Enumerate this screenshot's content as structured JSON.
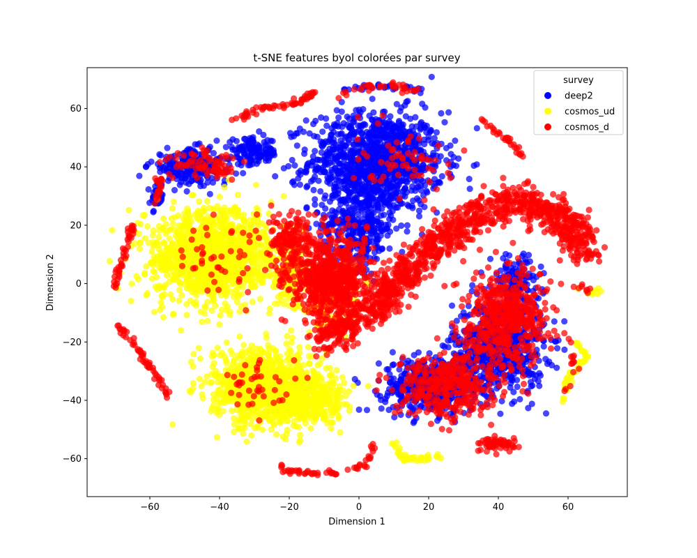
{
  "chart_data": {
    "type": "scatter",
    "title": "t-SNE features byol colorées par survey",
    "xlabel": "Dimension 1",
    "ylabel": "Dimension 2",
    "xlim": [
      -78,
      77
    ],
    "ylim": [
      -73,
      74
    ],
    "xticks": [
      -60,
      -40,
      -20,
      0,
      20,
      40,
      60
    ],
    "yticks": [
      -60,
      -40,
      -20,
      0,
      20,
      40,
      60
    ],
    "grid": false,
    "legend": {
      "title": "survey",
      "placement": "top-right"
    },
    "draw_order": [
      "deep2",
      "cosmos_ud",
      "cosmos_d"
    ],
    "series": [
      {
        "name": "deep2",
        "color": "#0000ff",
        "regions": [
          {
            "kind": "blob",
            "center": [
              5,
              42
            ],
            "spread": [
              16,
              14
            ],
            "count": 1100
          },
          {
            "kind": "blob",
            "center": [
              0,
              20
            ],
            "spread": [
              9,
              12
            ],
            "count": 350
          },
          {
            "kind": "blob",
            "center": [
              40,
              -22
            ],
            "spread": [
              11,
              13
            ],
            "count": 600
          },
          {
            "kind": "blob",
            "center": [
              20,
              -35
            ],
            "spread": [
              11,
              8
            ],
            "count": 450
          },
          {
            "kind": "blob",
            "center": [
              45,
              0
            ],
            "spread": [
              6,
              8
            ],
            "count": 160
          },
          {
            "kind": "blob",
            "center": [
              -48,
              40
            ],
            "spread": [
              10,
              5
            ],
            "count": 220
          },
          {
            "kind": "blob",
            "center": [
              -30,
              45
            ],
            "spread": [
              6,
              4
            ],
            "count": 120
          },
          {
            "kind": "blob",
            "center": [
              -58,
              30
            ],
            "spread": [
              1.5,
              4
            ],
            "count": 40
          },
          {
            "kind": "arc",
            "points": [
              [
                -5,
                66
              ],
              [
                5,
                68
              ],
              [
                15,
                67
              ],
              [
                19,
                65
              ]
            ],
            "count": 30
          }
        ]
      },
      {
        "name": "cosmos_ud",
        "color": "#ffff00",
        "regions": [
          {
            "kind": "blob",
            "center": [
              -42,
              10
            ],
            "spread": [
              14,
              13
            ],
            "count": 1300
          },
          {
            "kind": "blob",
            "center": [
              -28,
              -35
            ],
            "spread": [
              12,
              10
            ],
            "count": 900
          },
          {
            "kind": "blob",
            "center": [
              -15,
              -40
            ],
            "spread": [
              10,
              8
            ],
            "count": 400
          },
          {
            "kind": "blob",
            "center": [
              -20,
              5
            ],
            "spread": [
              5,
              12
            ],
            "count": 150
          },
          {
            "kind": "blob",
            "center": [
              -8,
              -5
            ],
            "spread": [
              7,
              10
            ],
            "count": 150
          },
          {
            "kind": "arc",
            "points": [
              [
                10,
                -55
              ],
              [
                13,
                -60
              ],
              [
                18,
                -60
              ],
              [
                23,
                -59
              ]
            ],
            "count": 40
          },
          {
            "kind": "arc",
            "points": [
              [
                62,
                -20
              ],
              [
                66,
                -25
              ],
              [
                60,
                -32
              ],
              [
                59,
                -40
              ]
            ],
            "count": 45
          },
          {
            "kind": "arc",
            "points": [
              [
                63,
                -2
              ],
              [
                66,
                -3
              ],
              [
                70,
                -2
              ]
            ],
            "count": 10
          }
        ]
      },
      {
        "name": "cosmos_d",
        "color": "#ff0000",
        "regions": [
          {
            "kind": "band",
            "points": [
              [
                -10,
                -20
              ],
              [
                5,
                -8
              ],
              [
                20,
                12
              ],
              [
                35,
                25
              ],
              [
                48,
                28
              ],
              [
                62,
                20
              ],
              [
                64,
                10
              ]
            ],
            "width": 4,
            "count": 1100
          },
          {
            "kind": "blob",
            "center": [
              -8,
              2
            ],
            "spread": [
              10,
              12
            ],
            "count": 700
          },
          {
            "kind": "blob",
            "center": [
              42,
              -12
            ],
            "spread": [
              10,
              14
            ],
            "count": 500
          },
          {
            "kind": "blob",
            "center": [
              25,
              -35
            ],
            "spread": [
              12,
              10
            ],
            "count": 350
          },
          {
            "kind": "blob",
            "center": [
              -20,
              15
            ],
            "spread": [
              5,
              8
            ],
            "count": 150
          },
          {
            "kind": "blob",
            "center": [
              -45,
              40
            ],
            "spread": [
              9,
              5
            ],
            "count": 80
          },
          {
            "kind": "blob",
            "center": [
              -40,
              10
            ],
            "spread": [
              12,
              12
            ],
            "count": 45
          },
          {
            "kind": "blob",
            "center": [
              -30,
              -35
            ],
            "spread": [
              10,
              8
            ],
            "count": 40
          },
          {
            "kind": "blob",
            "center": [
              40,
              -55
            ],
            "spread": [
              5,
              2
            ],
            "count": 60
          },
          {
            "kind": "blob",
            "center": [
              10,
              40
            ],
            "spread": [
              12,
              10
            ],
            "count": 60
          },
          {
            "kind": "arc",
            "points": [
              [
                -36,
                56
              ],
              [
                -28,
                60
              ],
              [
                -18,
                62
              ],
              [
                -12,
                66
              ]
            ],
            "count": 60
          },
          {
            "kind": "arc",
            "points": [
              [
                -71,
                -4
              ],
              [
                -68,
                8
              ],
              [
                -65,
                20
              ]
            ],
            "count": 45
          },
          {
            "kind": "arc",
            "points": [
              [
                -69,
                -14
              ],
              [
                -64,
                -22
              ],
              [
                -58,
                -32
              ],
              [
                -54,
                -39
              ]
            ],
            "count": 55
          },
          {
            "kind": "arc",
            "points": [
              [
                -24,
                -63
              ],
              [
                -18,
                -65
              ],
              [
                -10,
                -65
              ],
              [
                -6,
                -65
              ]
            ],
            "count": 35
          },
          {
            "kind": "arc",
            "points": [
              [
                -4,
                -64
              ],
              [
                2,
                -62
              ],
              [
                4,
                -55
              ]
            ],
            "count": 20
          },
          {
            "kind": "arc",
            "points": [
              [
                -7,
                64
              ],
              [
                0,
                67
              ],
              [
                10,
                68
              ],
              [
                19,
                65
              ]
            ],
            "count": 35
          },
          {
            "kind": "arc",
            "points": [
              [
                35,
                56
              ],
              [
                42,
                50
              ],
              [
                48,
                43
              ]
            ],
            "count": 30
          },
          {
            "kind": "arc",
            "points": [
              [
                -57,
                36
              ],
              [
                -58,
                28
              ]
            ],
            "count": 18
          },
          {
            "kind": "arc",
            "points": [
              [
                60,
                -18
              ],
              [
                62,
                -30
              ],
              [
                58,
                -40
              ]
            ],
            "count": 14
          },
          {
            "kind": "arc",
            "points": [
              [
                61,
                -2
              ],
              [
                64,
                -1
              ],
              [
                66,
                -3
              ]
            ],
            "count": 8
          }
        ]
      }
    ]
  }
}
